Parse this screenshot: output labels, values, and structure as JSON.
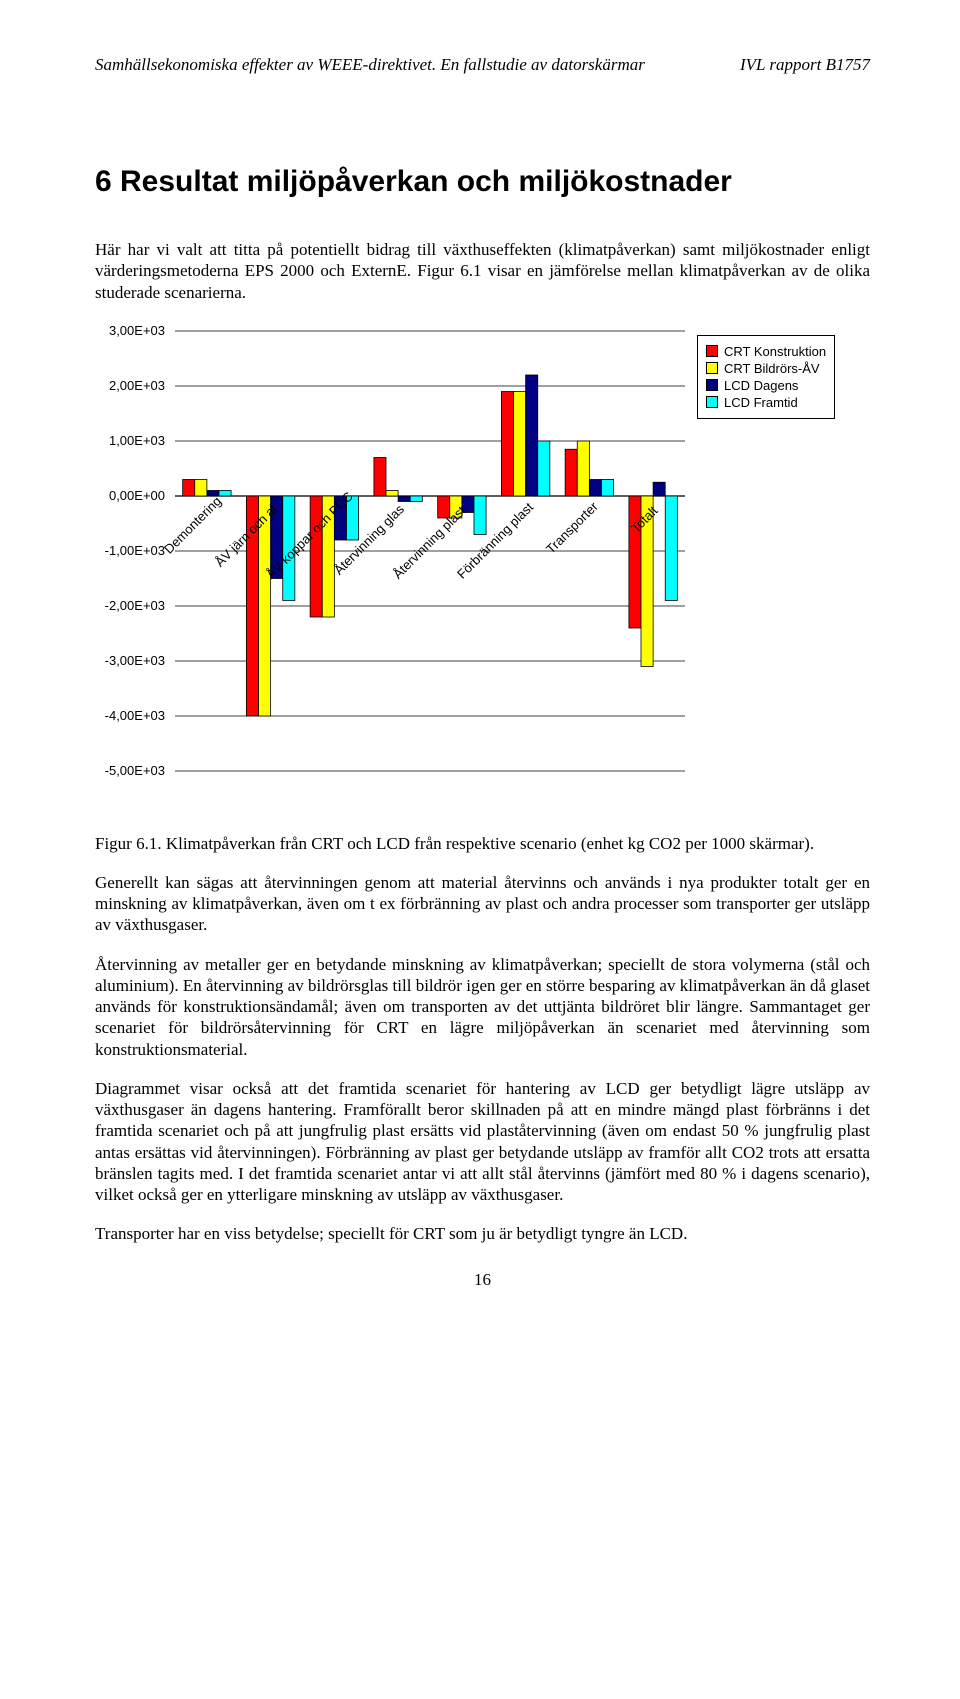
{
  "header": {
    "left": "Samhällsekonomiska effekter av WEEE-direktivet. En fallstudie av datorskärmar",
    "right": "IVL rapport B1757"
  },
  "section_title": "6  Resultat miljöpåverkan och miljökostnader",
  "intro_paragraph": "Här har vi valt att titta på potentiellt bidrag till växthuseffekten (klimatpåverkan) samt miljökostnader enligt värderingsmetoderna EPS 2000 och ExternE. Figur 6.1 visar en jämförelse mellan klimatpåverkan av de olika studerade scenarierna.",
  "chart": {
    "type": "bar",
    "categories": [
      "Demontering",
      "ÅV järn och al",
      "ÅV koppar och PCC",
      "Återvinning glas",
      "Återvinning plast",
      "Förbränning plast",
      "Transporter",
      "Totalt"
    ],
    "series": [
      {
        "name": "CRT Konstruktion",
        "color": "#ff0000",
        "values": [
          300,
          -4000,
          -2200,
          700,
          -400,
          1900,
          850,
          -2400
        ]
      },
      {
        "name": "CRT Bildrörs-ÅV",
        "color": "#ffff00",
        "values": [
          300,
          -4000,
          -2200,
          100,
          -400,
          1900,
          1000,
          -3100
        ]
      },
      {
        "name": "LCD Dagens",
        "color": "#000080",
        "values": [
          100,
          -1500,
          -800,
          -100,
          -300,
          2200,
          300,
          250
        ]
      },
      {
        "name": "LCD Framtid",
        "color": "#00ffff",
        "values": [
          100,
          -1900,
          -800,
          -100,
          -700,
          1000,
          300,
          -1900
        ]
      }
    ],
    "ylim": [
      -5000,
      3000
    ],
    "ytick_step": 1000,
    "ytick_labels": [
      "-5,00E+03",
      "-4,00E+03",
      "-3,00E+03",
      "-2,00E+03",
      "-1,00E+03",
      "0,00E+00",
      "1,00E+03",
      "2,00E+03",
      "3,00E+03"
    ],
    "background_color": "#ffffff",
    "grid_color": "#000000",
    "plot_border_color": "#808080",
    "bar_border_color": "#000000",
    "legend_position": "top-right",
    "label_fontsize": 13,
    "font_family": "Arial"
  },
  "caption": "Figur 6.1. Klimatpåverkan från CRT och LCD från respektive scenario (enhet kg CO2 per 1000 skärmar).",
  "paragraphs": [
    "Generellt kan sägas att återvinningen genom att material återvinns och används i nya produkter totalt ger en minskning av klimatpåverkan, även om t ex förbränning av plast och andra processer som transporter ger utsläpp av växthusgaser.",
    "Återvinning av metaller ger en betydande minskning av klimatpåverkan; speciellt de stora volymerna (stål och aluminium). En återvinning av bildrörsglas till bildrör igen ger en större besparing av klimatpåverkan än då glaset används för konstruktionsändamål; även om transporten av det uttjänta bildröret blir längre. Sammantaget ger scenariet för bildrörsåtervinning för CRT en lägre miljöpåverkan än scenariet med återvinning som konstruktionsmaterial.",
    "Diagrammet visar också att det framtida scenariet för hantering av LCD ger betydligt lägre utsläpp av växthusgaser än dagens hantering. Framförallt beror skillnaden på att en mindre mängd plast förbränns i det framtida scenariet och på att jungfrulig plast ersätts vid plaståtervinning (även om endast 50 % jungfrulig plast antas ersättas vid återvinningen). Förbränning av plast ger betydande utsläpp av framför allt CO2 trots att ersatta bränslen tagits med. I det framtida scenariet antar vi att allt stål återvinns (jämfört med 80 % i dagens scenario), vilket också ger en ytterligare minskning av utsläpp av växthusgaser.",
    "Transporter har en viss betydelse; speciellt för CRT som ju är betydligt tyngre än LCD."
  ],
  "page_number": "16"
}
